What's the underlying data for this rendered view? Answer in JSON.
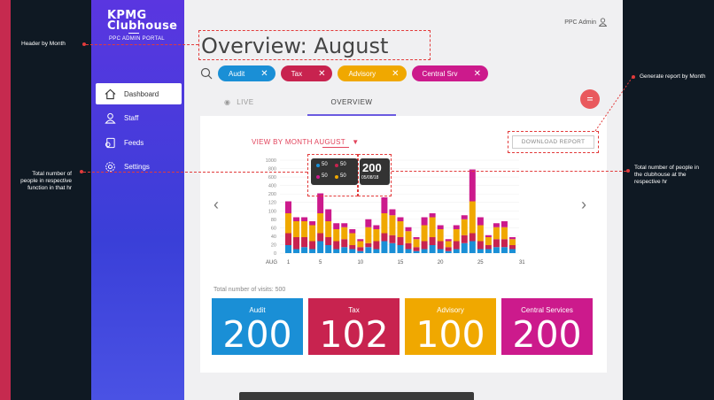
{
  "annotations": {
    "header": "Header by Month",
    "report": "Generate report by Month",
    "function_count": "Total number of people in respective function in that hr",
    "clubhouse_count": "Total number of people in the clubhouse at the respective hr"
  },
  "brand": {
    "line1": "KPMG",
    "line2": "Clubhouse",
    "subtitle": "PPC ADMIN PORTAL"
  },
  "user": {
    "name": "PPC Admin"
  },
  "nav": [
    {
      "label": "Dashboard",
      "icon": "home-icon"
    },
    {
      "label": "Staff",
      "icon": "person-icon"
    },
    {
      "label": "Feeds",
      "icon": "feeds-icon"
    },
    {
      "label": "Settings",
      "icon": "gear-icon"
    }
  ],
  "page_title": "Overview: August",
  "filters": [
    {
      "label": "Audit",
      "color": "#1a8fd6"
    },
    {
      "label": "Tax",
      "color": "#c8234f"
    },
    {
      "label": "Advisory",
      "color": "#f0a800"
    },
    {
      "label": "Central Srv",
      "color": "#cc1a8c"
    }
  ],
  "tabs": {
    "live": "LIVE",
    "overview": "OVERVIEW"
  },
  "view_by": {
    "prefix": "VIEW BY MONTH",
    "month": "AUGUST"
  },
  "download_label": "DOWNLOAD REPORT",
  "tooltip": {
    "audit": "50",
    "tax": "50",
    "central": "50",
    "advisory": "50",
    "total": "200",
    "date": "05/08/18"
  },
  "visits_label": "Total number of visits: 500",
  "stats": [
    {
      "label": "Audit",
      "value": "200",
      "color": "#1a8fd6"
    },
    {
      "label": "Tax",
      "value": "102",
      "color": "#c8234f"
    },
    {
      "label": "Advisory",
      "value": "100",
      "color": "#f0a800"
    },
    {
      "label": "Central Services",
      "value": "200",
      "color": "#cc1a8c"
    }
  ],
  "chart_data": {
    "type": "bar",
    "stacked": true,
    "x_prefix": "AUG",
    "x_ticks": [
      "1",
      "5",
      "10",
      "15",
      "20",
      "25",
      "31"
    ],
    "y_ticks": [
      "1000",
      "800",
      "600",
      "400",
      "200",
      "120",
      "100",
      "80",
      "60",
      "40",
      "20",
      "0"
    ],
    "series_colors": {
      "audit": "#1a8fd6",
      "tax": "#c8234f",
      "advisory": "#f0a800",
      "central": "#cc1a8c"
    },
    "bars": [
      [
        20,
        30,
        50,
        30
      ],
      [
        10,
        30,
        40,
        10
      ],
      [
        15,
        25,
        40,
        10
      ],
      [
        10,
        20,
        40,
        10
      ],
      [
        30,
        20,
        50,
        50
      ],
      [
        20,
        20,
        40,
        30
      ],
      [
        10,
        20,
        30,
        15
      ],
      [
        15,
        20,
        30,
        10
      ],
      [
        10,
        10,
        30,
        10
      ],
      [
        5,
        10,
        15,
        5
      ],
      [
        15,
        10,
        40,
        20
      ],
      [
        10,
        20,
        30,
        10
      ],
      [
        30,
        20,
        50,
        40
      ],
      [
        25,
        20,
        50,
        15
      ],
      [
        20,
        20,
        40,
        10
      ],
      [
        10,
        15,
        30,
        10
      ],
      [
        5,
        10,
        20,
        5
      ],
      [
        10,
        20,
        40,
        20
      ],
      [
        20,
        20,
        50,
        10
      ],
      [
        10,
        20,
        30,
        10
      ],
      [
        5,
        10,
        15,
        5
      ],
      [
        10,
        20,
        30,
        10
      ],
      [
        25,
        20,
        40,
        10
      ],
      [
        30,
        20,
        80,
        80
      ],
      [
        10,
        20,
        40,
        20
      ],
      [
        10,
        10,
        20,
        5
      ],
      [
        15,
        20,
        30,
        10
      ],
      [
        15,
        20,
        30,
        15
      ],
      [
        10,
        10,
        15,
        5
      ]
    ]
  }
}
